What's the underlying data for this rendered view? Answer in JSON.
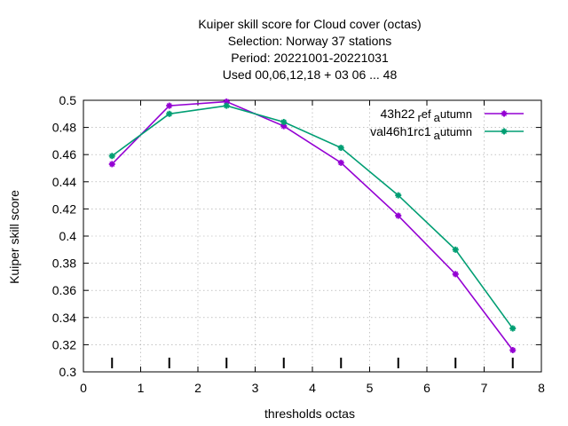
{
  "chart_data": {
    "type": "line",
    "title_lines": [
      "Kuiper skill score  for Cloud cover (octas)",
      "Selection: Norway     37 stations",
      "Period: 20221001-20221031",
      "Used  00,06,12,18  + 03 06 ... 48"
    ],
    "xlabel": "thresholds octas",
    "ylabel": "Kuiper skill score",
    "xlim": [
      0,
      8
    ],
    "ylim": [
      0.3,
      0.5
    ],
    "xticks": [
      0,
      1,
      2,
      3,
      4,
      5,
      6,
      7,
      8
    ],
    "yticks": [
      0.3,
      0.32,
      0.34,
      0.36,
      0.38,
      0.4,
      0.42,
      0.44,
      0.46,
      0.48,
      0.5
    ],
    "grid": true,
    "legend_position": "top-right",
    "x": [
      0.5,
      1.5,
      2.5,
      3.5,
      4.5,
      5.5,
      6.5,
      7.5
    ],
    "series": [
      {
        "name": "43h22_ref_autumn",
        "legend_parts": [
          "43h22",
          "r",
          "ef",
          "a",
          "utumn"
        ],
        "color": "#9400d3",
        "values": [
          0.453,
          0.496,
          0.499,
          0.481,
          0.454,
          0.415,
          0.372,
          0.316
        ]
      },
      {
        "name": "val46h1rc1_autumn",
        "legend_parts": [
          "val46h1rc1",
          "a",
          "utumn"
        ],
        "color": "#009e73",
        "values": [
          0.459,
          0.49,
          0.496,
          0.484,
          0.465,
          0.43,
          0.39,
          0.332
        ]
      }
    ]
  }
}
